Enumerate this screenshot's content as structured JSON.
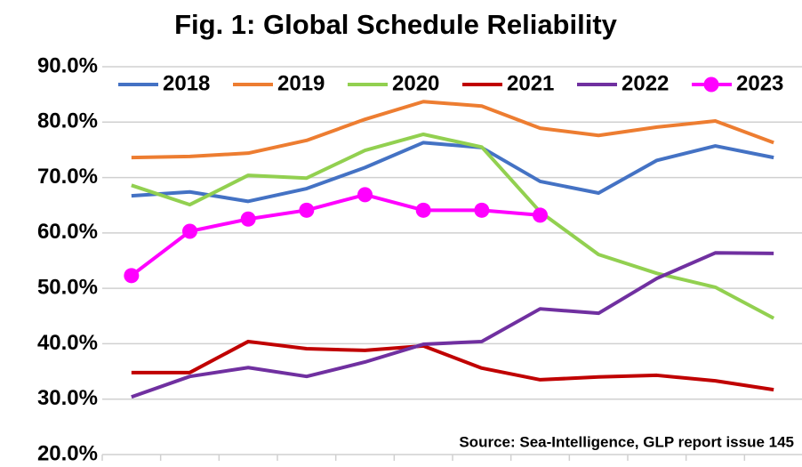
{
  "chart_data": {
    "type": "line",
    "title": "Fig. 1: Global Schedule Reliability",
    "annotation": "Source: Sea-Intelligence, GLP report issue 145",
    "categories": [
      null,
      null,
      null,
      null,
      null,
      null,
      null,
      null,
      null,
      null,
      null,
      null
    ],
    "ylim": [
      20,
      90
    ],
    "yticks": [
      {
        "value": 20,
        "label": "20.0%"
      },
      {
        "value": 30,
        "label": "30.0%"
      },
      {
        "value": 40,
        "label": "40.0%"
      },
      {
        "value": 50,
        "label": "50.0%"
      },
      {
        "value": 60,
        "label": "60.0%"
      },
      {
        "value": 70,
        "label": "70.0%"
      },
      {
        "value": 80,
        "label": "80.0%"
      },
      {
        "value": 90,
        "label": "90.0%"
      }
    ],
    "grid": true,
    "legend": "top",
    "series": [
      {
        "name": "2018",
        "color": "#4472c4",
        "values": [
          66.7,
          67.4,
          65.7,
          68.0,
          71.8,
          76.3,
          75.4,
          69.3,
          67.2,
          73.1,
          75.7,
          73.6
        ]
      },
      {
        "name": "2019",
        "color": "#ed7d31",
        "values": [
          73.6,
          73.8,
          74.4,
          76.7,
          80.5,
          83.7,
          82.9,
          78.9,
          77.6,
          79.1,
          80.2,
          76.3
        ]
      },
      {
        "name": "2020",
        "color": "#92d050",
        "values": [
          68.6,
          65.1,
          70.4,
          69.9,
          74.9,
          77.8,
          75.5,
          63.8,
          56.1,
          52.7,
          50.2,
          44.6
        ]
      },
      {
        "name": "2021",
        "color": "#c00000",
        "values": [
          34.8,
          34.8,
          40.4,
          39.1,
          38.8,
          39.6,
          35.6,
          33.5,
          34.0,
          34.3,
          33.3,
          31.7
        ]
      },
      {
        "name": "2022",
        "color": "#7030a0",
        "values": [
          30.4,
          34.1,
          35.7,
          34.1,
          36.7,
          39.9,
          40.4,
          46.3,
          45.5,
          51.8,
          56.4,
          56.3
        ]
      },
      {
        "name": "2023",
        "color": "#ff00ff",
        "marker": "circle",
        "values": [
          52.3,
          60.3,
          62.5,
          64.1,
          66.9,
          64.1,
          64.1,
          63.2,
          null,
          null,
          null,
          null
        ]
      }
    ]
  }
}
